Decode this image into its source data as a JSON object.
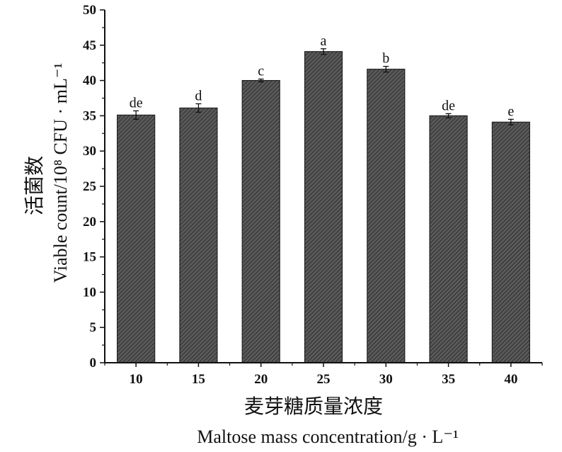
{
  "chart_data": {
    "type": "bar",
    "categories": [
      "10",
      "15",
      "20",
      "25",
      "30",
      "35",
      "40"
    ],
    "values": [
      35.1,
      36.1,
      40.0,
      44.1,
      41.6,
      35.0,
      34.1
    ],
    "errors": [
      0.6,
      0.6,
      0.2,
      0.4,
      0.4,
      0.3,
      0.4
    ],
    "significance": [
      "de",
      "d",
      "c",
      "a",
      "b",
      "de",
      "e"
    ],
    "ylim": [
      0,
      50
    ],
    "yticks": [
      "0",
      "5",
      "10",
      "15",
      "20",
      "25",
      "30",
      "35",
      "40",
      "45",
      "50"
    ],
    "ylabel_cn": "活菌数",
    "ylabel_en": "Viable count/10⁸ CFU · mL⁻¹",
    "xlabel_cn": "麦芽糖质量浓度",
    "xlabel_en": "Maltose mass concentration/g · L⁻¹",
    "bar_color": "#4a4a4a",
    "grid": false
  }
}
